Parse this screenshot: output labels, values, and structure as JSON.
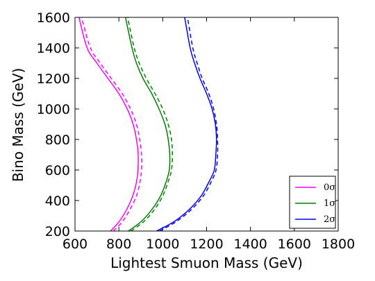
{
  "chart_data": {
    "type": "line",
    "xlabel": "Lightest Smuon Mass (GeV)",
    "ylabel": "Bino Mass (GeV)",
    "xlim": [
      600,
      1800
    ],
    "ylim": [
      200,
      1600
    ],
    "xticks": [
      "600",
      "800",
      "1000",
      "1200",
      "1400",
      "1600",
      "1800"
    ],
    "yticks": [
      "200",
      "400",
      "600",
      "800",
      "1000",
      "1200",
      "1400",
      "1600"
    ],
    "grid": false,
    "legend_position": "bottom-right",
    "legend": [
      {
        "label": "0σ",
        "color": "#ff00ff"
      },
      {
        "label": "1σ",
        "color": "#008000"
      },
      {
        "label": "2σ",
        "color": "#0000ff"
      }
    ],
    "series": [
      {
        "name": "0σ",
        "color": "#ff00ff",
        "style": "solid",
        "x": [
          762,
          800,
          835,
          863,
          880,
          887,
          888,
          880,
          865,
          838,
          800,
          750,
          700,
          655,
          618
        ],
        "y": [
          200,
          260,
          340,
          430,
          520,
          600,
          700,
          800,
          900,
          1000,
          1100,
          1200,
          1300,
          1400,
          1600
        ]
      },
      {
        "name": "0σ",
        "color": "#ff00ff",
        "style": "dashed",
        "x": [
          775,
          815,
          850,
          880,
          896,
          903,
          903,
          895,
          880,
          853,
          815,
          765,
          715,
          670,
          630
        ],
        "y": [
          200,
          260,
          340,
          430,
          520,
          600,
          700,
          800,
          900,
          1000,
          1100,
          1200,
          1300,
          1400,
          1600
        ]
      },
      {
        "name": "1σ",
        "color": "#008000",
        "style": "solid",
        "x": [
          843,
          900,
          950,
          990,
          1015,
          1030,
          1032,
          1025,
          1010,
          983,
          950,
          910,
          880,
          860,
          830
        ],
        "y": [
          200,
          260,
          340,
          430,
          520,
          600,
          700,
          800,
          900,
          1000,
          1100,
          1200,
          1300,
          1400,
          1600
        ]
      },
      {
        "name": "1σ",
        "color": "#008000",
        "style": "dashed",
        "x": [
          855,
          912,
          962,
          1000,
          1024,
          1040,
          1044,
          1040,
          1025,
          1000,
          965,
          925,
          893,
          870,
          840
        ],
        "y": [
          200,
          260,
          340,
          430,
          520,
          600,
          700,
          800,
          900,
          1000,
          1100,
          1200,
          1300,
          1400,
          1600
        ]
      },
      {
        "name": "2σ",
        "color": "#0000ff",
        "style": "solid",
        "x": [
          972,
          1050,
          1120,
          1175,
          1210,
          1235,
          1242,
          1245,
          1240,
          1225,
          1200,
          1170,
          1145,
          1125,
          1100
        ],
        "y": [
          200,
          260,
          340,
          430,
          520,
          600,
          700,
          800,
          900,
          1000,
          1100,
          1200,
          1300,
          1400,
          1600
        ]
      },
      {
        "name": "2σ",
        "color": "#0000ff",
        "style": "dashed",
        "x": [
          985,
          1060,
          1130,
          1185,
          1220,
          1243,
          1250,
          1250,
          1245,
          1232,
          1210,
          1180,
          1157,
          1137,
          1113
        ],
        "y": [
          200,
          260,
          340,
          430,
          520,
          600,
          700,
          800,
          900,
          1000,
          1100,
          1200,
          1300,
          1400,
          1600
        ]
      }
    ]
  }
}
